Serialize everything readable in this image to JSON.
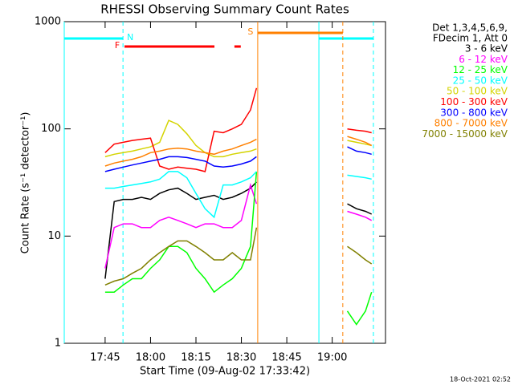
{
  "chart_data": {
    "type": "line",
    "title": "RHESSI Observing Summary Count Rates",
    "x_label": "Start Time (09-Aug-02 17:33:42)",
    "y_label": "Count Rate (s⁻¹ detector⁻¹)",
    "legend_header": [
      "Det 1,3,4,5,6,9,",
      "FDecim 1, Att 0"
    ],
    "footer": "18-Oct-2021 02:52",
    "log_y": true,
    "xlim": [
      31.5,
      137.6
    ],
    "ylim": [
      1,
      1000
    ],
    "xticks": [
      {
        "value": 45,
        "label": "17:45"
      },
      {
        "value": 60,
        "label": "18:00"
      },
      {
        "value": 75,
        "label": "18:15"
      },
      {
        "value": 90,
        "label": "18:30"
      },
      {
        "value": 105,
        "label": "18:45"
      },
      {
        "value": 120,
        "label": "19:00"
      }
    ],
    "yticks": [
      1,
      10,
      100,
      1000
    ],
    "x": [
      45,
      48,
      51,
      54,
      57,
      60,
      63,
      66,
      69,
      72,
      75,
      78,
      81,
      84,
      87,
      90,
      93,
      95,
      110,
      125,
      128,
      131,
      133
    ],
    "series": [
      {
        "name": "3 - 6 keV",
        "color": "#000000",
        "values": [
          4,
          21,
          22,
          22,
          23,
          22,
          25,
          27,
          28,
          25,
          22,
          23,
          24,
          22,
          23,
          25,
          28,
          32,
          null,
          20,
          18,
          17,
          16
        ]
      },
      {
        "name": "6 - 12 keV",
        "color": "#ff00ff",
        "values": [
          5,
          12,
          13,
          13,
          12,
          12,
          14,
          15,
          14,
          13,
          12,
          13,
          13,
          12,
          12,
          14,
          30,
          20,
          null,
          17,
          16,
          15,
          14
        ]
      },
      {
        "name": "12 - 25 keV",
        "color": "#00ff00",
        "values": [
          3,
          3,
          3.5,
          4,
          4,
          5,
          6,
          8,
          8,
          7,
          5,
          4,
          3,
          3.5,
          4,
          5,
          8,
          40,
          null,
          2,
          1.5,
          2,
          3
        ]
      },
      {
        "name": "25 - 50 keV",
        "color": "#00ffff",
        "values": [
          28,
          28,
          29,
          30,
          31,
          32,
          34,
          40,
          40,
          35,
          25,
          18,
          15,
          30,
          30,
          32,
          35,
          40,
          null,
          37,
          36,
          35,
          34
        ]
      },
      {
        "name": "50 - 100 keV",
        "color": "#d4d400",
        "values": [
          55,
          58,
          60,
          62,
          65,
          68,
          75,
          120,
          110,
          90,
          70,
          60,
          55,
          55,
          58,
          60,
          62,
          65,
          null,
          78,
          75,
          72,
          70
        ]
      },
      {
        "name": "100 - 300 keV",
        "color": "#ff0000",
        "values": [
          60,
          72,
          75,
          78,
          80,
          82,
          45,
          42,
          44,
          43,
          42,
          40,
          95,
          92,
          100,
          110,
          150,
          240,
          null,
          100,
          97,
          95,
          92
        ]
      },
      {
        "name": "300 - 800 keV",
        "color": "#0000ff",
        "values": [
          40,
          42,
          44,
          46,
          48,
          50,
          52,
          55,
          55,
          54,
          52,
          50,
          45,
          44,
          45,
          47,
          50,
          55,
          null,
          68,
          62,
          60,
          58
        ]
      },
      {
        "name": "800 - 7000 keV",
        "color": "#ff8000",
        "values": [
          45,
          48,
          50,
          52,
          55,
          60,
          62,
          65,
          66,
          65,
          62,
          60,
          58,
          62,
          65,
          70,
          75,
          80,
          null,
          85,
          80,
          75,
          70
        ]
      },
      {
        "name": "7000 - 15000 keV",
        "color": "#808000",
        "values": [
          3.5,
          3.8,
          4,
          4.5,
          5,
          6,
          7,
          8,
          9,
          9,
          8,
          7,
          6,
          6,
          7,
          6,
          6,
          12,
          null,
          8,
          7,
          6,
          5.5
        ]
      }
    ],
    "flags": [
      {
        "label": "N",
        "color": "#00ffff",
        "spans": [
          [
            31.5,
            50.9
          ],
          [
            115.6,
            133.6
          ]
        ]
      },
      {
        "label": "F",
        "color": "#ff0000",
        "spans": [
          [
            51.4,
            81.1
          ],
          [
            87.7,
            89.8
          ]
        ]
      },
      {
        "label": "S",
        "color": "#ff8000",
        "spans": [
          [
            95.4,
            123.5
          ]
        ]
      }
    ]
  }
}
